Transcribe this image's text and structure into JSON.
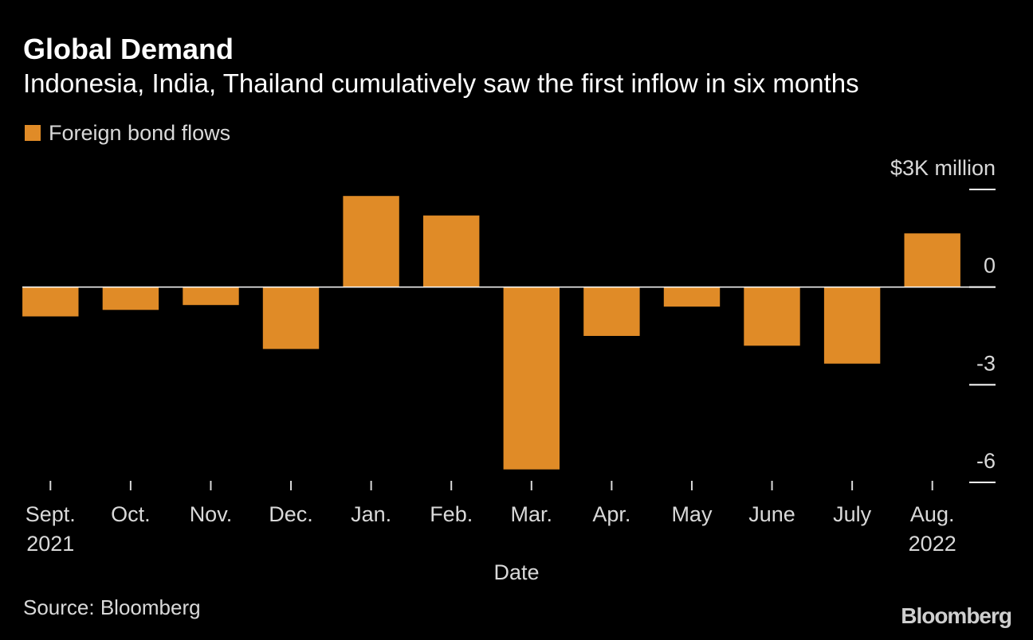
{
  "title": "Global Demand",
  "subtitle": "Indonesia, India, Thailand cumulatively saw the first inflow in six months",
  "source": "Source: Bloomberg",
  "logo": "Bloomberg",
  "colors": {
    "background": "#000000",
    "bar": "#e08b27",
    "text": "#ffffff",
    "muted_text": "#d9d9d9"
  },
  "chart_data": {
    "type": "bar",
    "title": "Global Demand",
    "subtitle": "Indonesia, India, Thailand cumulatively saw the first inflow in six months",
    "xlabel": "Date",
    "ylabel": "",
    "y_unit_label": "$3K million",
    "categories": [
      "Sept.",
      "Oct.",
      "Nov.",
      "Dec.",
      "Jan.",
      "Feb.",
      "Mar.",
      "Apr.",
      "May",
      "June",
      "July",
      "Aug."
    ],
    "category_sublabels": [
      "2021",
      "",
      "",
      "",
      "",
      "",
      "",
      "",
      "",
      "",
      "",
      "2022"
    ],
    "series": [
      {
        "name": "Foreign bond flows",
        "values": [
          -0.9,
          -0.7,
          -0.55,
          -1.9,
          2.8,
          2.2,
          -5.6,
          -1.5,
          -0.6,
          -1.8,
          -2.35,
          1.65
        ]
      }
    ],
    "ylim": [
      -6,
      3
    ],
    "yticks": [
      3,
      0,
      -3,
      -6
    ],
    "ytick_labels": [
      "$3K million",
      "0",
      "-3",
      "-6"
    ],
    "y_axis_side": "right",
    "legend": "top-left",
    "grid": false,
    "zero_line": true
  }
}
